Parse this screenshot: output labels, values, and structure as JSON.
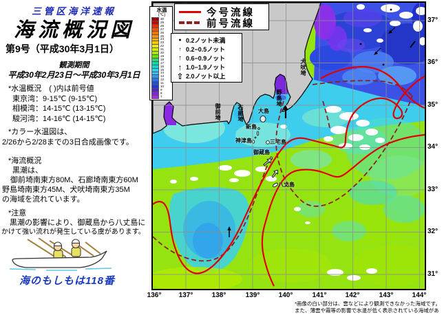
{
  "header": {
    "agency": "三管区海洋速報",
    "title": "海流概況図",
    "issue": "第9号（平成30年3月1日）",
    "period_label": "観測期間",
    "period": "平成30年2月23日～平成30年3月1日"
  },
  "water_temp": {
    "heading": "*水温概況　( )内は前号値",
    "lines": [
      "東京湾：9-15℃ (9-15℃)",
      "相模湾：14-15℃ (13-15℃)",
      "駿河湾：14-16℃ (14-15℃)"
    ]
  },
  "color_note": {
    "line1": "*カラー水温図は、",
    "line2": "2/26から2/28までの3日合成画像です。"
  },
  "current_summary": {
    "heading": "*海流概況",
    "lines": [
      "黒潮は、",
      "御前埼南東方80M、石廊埼南東方60M",
      "野島埼南東方45M、犬吠埼南東方35M",
      "の海域を流れています。"
    ]
  },
  "caution": {
    "heading": "*注意",
    "lines": [
      "黒潮の影響により、御蔵島から八丈島に",
      "かけて強い流れが発生している虞があります。"
    ]
  },
  "emergency": "海のもしもは118番",
  "legend": {
    "current_label": "今号流線",
    "previous_label": "前号流線",
    "speeds": [
      "0.2ノット未満",
      "0.2−0.5ノット",
      "0.6−0.9ノット",
      "1.0−1.9ノット",
      "2.0ノット以上"
    ]
  },
  "colorbar": {
    "title": "水温",
    "unit": "(℃)",
    "values": [
      30,
      29,
      28,
      27,
      26,
      25,
      24,
      23,
      22,
      21,
      20,
      19,
      18,
      17,
      16,
      15,
      14,
      13,
      12,
      11,
      10,
      9,
      8,
      7
    ],
    "colors": [
      "#9b0000",
      "#d00000",
      "#ee2e00",
      "#f55400",
      "#fa7300",
      "#fc9100",
      "#fcb000",
      "#f8d000",
      "#f0ec00",
      "#d2ee00",
      "#a8e800",
      "#6ee000",
      "#2cd870",
      "#00dcaa",
      "#00dcd4",
      "#28d2ec",
      "#46bcf2",
      "#2e9cf2",
      "#2276ee",
      "#1c52e2",
      "#2836cc",
      "#4a28cc",
      "#7c28da",
      "#aa28e6"
    ]
  },
  "map": {
    "lat_labels": [
      "37°",
      "36°",
      "35°",
      "34°",
      "33°",
      "32°",
      "31°"
    ],
    "lon_labels": [
      "136°",
      "137°",
      "138°",
      "139°",
      "140°",
      "141°",
      "142°",
      "143°",
      "144°"
    ],
    "islands": [
      "大島",
      "新島",
      "神津島",
      "三宅島",
      "御蔵島",
      "八丈島"
    ],
    "capes": [
      "御前埼",
      "石廊埼",
      "野島埼",
      "犬吠埼"
    ],
    "footnote": [
      "*画像の白い部分は、雲などにより観測できなかった海域です。",
      "また、薄雲や霧等の影響で水温が低く表示されている海域があります。"
    ]
  },
  "colors": {
    "current_line": "#e00000",
    "previous_line": "#8b2020",
    "land": "#c9c9c9",
    "sea_warm": "#96e312",
    "accent_blue": "#1c2cb4"
  }
}
